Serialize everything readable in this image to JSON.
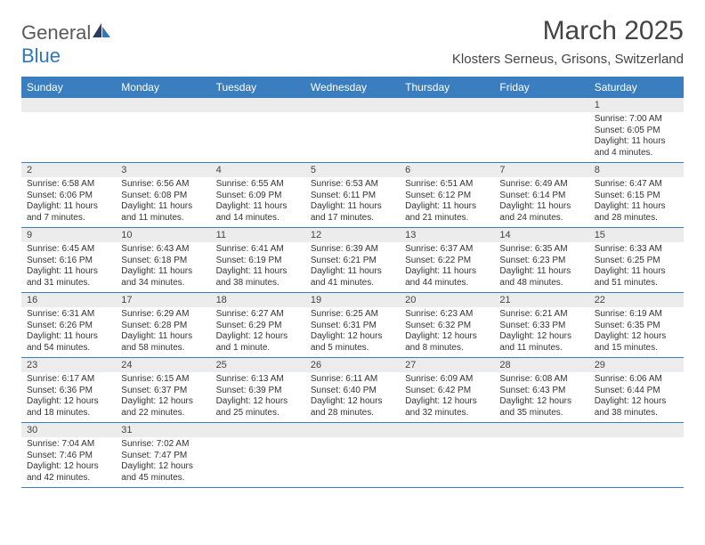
{
  "logo": {
    "word1": "General",
    "word2": "Blue"
  },
  "title": "March 2025",
  "location": "Klosters Serneus, Grisons, Switzerland",
  "colors": {
    "header_bg": "#3a7ebf",
    "header_text": "#ffffff",
    "daynum_bg": "#ececec",
    "rule": "#3a7ebf",
    "logo_gray": "#5a5a5a",
    "logo_blue": "#2f77bb"
  },
  "weekdays": [
    "Sunday",
    "Monday",
    "Tuesday",
    "Wednesday",
    "Thursday",
    "Friday",
    "Saturday"
  ],
  "weeks": [
    [
      null,
      null,
      null,
      null,
      null,
      null,
      {
        "n": "1",
        "sr": "7:00 AM",
        "ss": "6:05 PM",
        "dl": "11 hours and 4 minutes."
      }
    ],
    [
      {
        "n": "2",
        "sr": "6:58 AM",
        "ss": "6:06 PM",
        "dl": "11 hours and 7 minutes."
      },
      {
        "n": "3",
        "sr": "6:56 AM",
        "ss": "6:08 PM",
        "dl": "11 hours and 11 minutes."
      },
      {
        "n": "4",
        "sr": "6:55 AM",
        "ss": "6:09 PM",
        "dl": "11 hours and 14 minutes."
      },
      {
        "n": "5",
        "sr": "6:53 AM",
        "ss": "6:11 PM",
        "dl": "11 hours and 17 minutes."
      },
      {
        "n": "6",
        "sr": "6:51 AM",
        "ss": "6:12 PM",
        "dl": "11 hours and 21 minutes."
      },
      {
        "n": "7",
        "sr": "6:49 AM",
        "ss": "6:14 PM",
        "dl": "11 hours and 24 minutes."
      },
      {
        "n": "8",
        "sr": "6:47 AM",
        "ss": "6:15 PM",
        "dl": "11 hours and 28 minutes."
      }
    ],
    [
      {
        "n": "9",
        "sr": "6:45 AM",
        "ss": "6:16 PM",
        "dl": "11 hours and 31 minutes."
      },
      {
        "n": "10",
        "sr": "6:43 AM",
        "ss": "6:18 PM",
        "dl": "11 hours and 34 minutes."
      },
      {
        "n": "11",
        "sr": "6:41 AM",
        "ss": "6:19 PM",
        "dl": "11 hours and 38 minutes."
      },
      {
        "n": "12",
        "sr": "6:39 AM",
        "ss": "6:21 PM",
        "dl": "11 hours and 41 minutes."
      },
      {
        "n": "13",
        "sr": "6:37 AM",
        "ss": "6:22 PM",
        "dl": "11 hours and 44 minutes."
      },
      {
        "n": "14",
        "sr": "6:35 AM",
        "ss": "6:23 PM",
        "dl": "11 hours and 48 minutes."
      },
      {
        "n": "15",
        "sr": "6:33 AM",
        "ss": "6:25 PM",
        "dl": "11 hours and 51 minutes."
      }
    ],
    [
      {
        "n": "16",
        "sr": "6:31 AM",
        "ss": "6:26 PM",
        "dl": "11 hours and 54 minutes."
      },
      {
        "n": "17",
        "sr": "6:29 AM",
        "ss": "6:28 PM",
        "dl": "11 hours and 58 minutes."
      },
      {
        "n": "18",
        "sr": "6:27 AM",
        "ss": "6:29 PM",
        "dl": "12 hours and 1 minute."
      },
      {
        "n": "19",
        "sr": "6:25 AM",
        "ss": "6:31 PM",
        "dl": "12 hours and 5 minutes."
      },
      {
        "n": "20",
        "sr": "6:23 AM",
        "ss": "6:32 PM",
        "dl": "12 hours and 8 minutes."
      },
      {
        "n": "21",
        "sr": "6:21 AM",
        "ss": "6:33 PM",
        "dl": "12 hours and 11 minutes."
      },
      {
        "n": "22",
        "sr": "6:19 AM",
        "ss": "6:35 PM",
        "dl": "12 hours and 15 minutes."
      }
    ],
    [
      {
        "n": "23",
        "sr": "6:17 AM",
        "ss": "6:36 PM",
        "dl": "12 hours and 18 minutes."
      },
      {
        "n": "24",
        "sr": "6:15 AM",
        "ss": "6:37 PM",
        "dl": "12 hours and 22 minutes."
      },
      {
        "n": "25",
        "sr": "6:13 AM",
        "ss": "6:39 PM",
        "dl": "12 hours and 25 minutes."
      },
      {
        "n": "26",
        "sr": "6:11 AM",
        "ss": "6:40 PM",
        "dl": "12 hours and 28 minutes."
      },
      {
        "n": "27",
        "sr": "6:09 AM",
        "ss": "6:42 PM",
        "dl": "12 hours and 32 minutes."
      },
      {
        "n": "28",
        "sr": "6:08 AM",
        "ss": "6:43 PM",
        "dl": "12 hours and 35 minutes."
      },
      {
        "n": "29",
        "sr": "6:06 AM",
        "ss": "6:44 PM",
        "dl": "12 hours and 38 minutes."
      }
    ],
    [
      {
        "n": "30",
        "sr": "7:04 AM",
        "ss": "7:46 PM",
        "dl": "12 hours and 42 minutes."
      },
      {
        "n": "31",
        "sr": "7:02 AM",
        "ss": "7:47 PM",
        "dl": "12 hours and 45 minutes."
      },
      null,
      null,
      null,
      null,
      null
    ]
  ],
  "labels": {
    "sunrise": "Sunrise: ",
    "sunset": "Sunset: ",
    "daylight": "Daylight: "
  }
}
